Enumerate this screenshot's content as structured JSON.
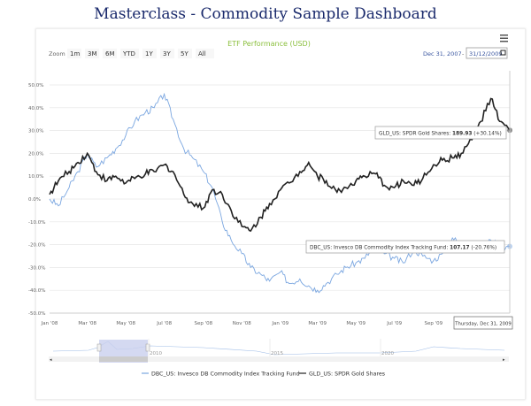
{
  "page_title": "Masterclass - Commodity Sample Dashboard",
  "chart_data": {
    "type": "line",
    "title": "ETF Performance (USD)",
    "title_color": "#8bbf3d",
    "zoom_label": "Zoom",
    "range_buttons": [
      "1m",
      "3M",
      "6M",
      "YTD",
      "1Y",
      "3Y",
      "5Y",
      "All"
    ],
    "range_from": "Dec 31, 2007",
    "range_to": "31/12/2009",
    "menu_icon": "hamburger-icon",
    "ylim": [
      -50,
      50
    ],
    "yticks": [
      "50.0%",
      "40.0%",
      "30.0%",
      "20.0%",
      "10.0%",
      "0.0%",
      "-10.0%",
      "-20.0%",
      "-30.0%",
      "-40.0%",
      "-50.0%"
    ],
    "xticks": [
      "Jan '08",
      "Mar '08",
      "May '08",
      "Jul '08",
      "Sep '08",
      "Nov '08",
      "Jan '09",
      "Mar '09",
      "May '09",
      "Jul '09",
      "Sep '09"
    ],
    "xlim": [
      "2008-01-01",
      "2009-12-31"
    ],
    "grid": true,
    "series": [
      {
        "name": "DBC_US: Invesco DB Commodity Index Tracking Fund",
        "color": "#7aa6e0",
        "x": [
          "2008-01-01",
          "2008-01-15",
          "2008-02-01",
          "2008-02-15",
          "2008-03-01",
          "2008-03-15",
          "2008-04-01",
          "2008-04-15",
          "2008-05-01",
          "2008-05-15",
          "2008-06-01",
          "2008-06-15",
          "2008-07-01",
          "2008-07-15",
          "2008-08-01",
          "2008-08-15",
          "2008-09-01",
          "2008-09-15",
          "2008-10-01",
          "2008-10-15",
          "2008-11-01",
          "2008-11-15",
          "2008-12-01",
          "2008-12-15",
          "2009-01-01",
          "2009-01-15",
          "2009-02-01",
          "2009-02-15",
          "2009-03-01",
          "2009-03-15",
          "2009-04-01",
          "2009-04-15",
          "2009-05-01",
          "2009-05-15",
          "2009-06-01",
          "2009-06-15",
          "2009-07-01",
          "2009-07-15",
          "2009-08-01",
          "2009-08-15",
          "2009-09-01",
          "2009-09-15",
          "2009-10-01",
          "2009-10-15",
          "2009-11-01",
          "2009-11-15",
          "2009-12-01",
          "2009-12-15",
          "2009-12-31"
        ],
        "values": [
          0,
          -3,
          5,
          12,
          20,
          14,
          18,
          22,
          28,
          34,
          38,
          40,
          46,
          35,
          22,
          18,
          12,
          5,
          -10,
          -18,
          -24,
          -30,
          -33,
          -36,
          -32,
          -37,
          -35,
          -38,
          -40,
          -37,
          -33,
          -30,
          -28,
          -26,
          -20,
          -24,
          -26,
          -28,
          -22,
          -25,
          -27,
          -24,
          -17,
          -20,
          -19,
          -22,
          -18,
          -21,
          -20.76
        ]
      },
      {
        "name": "GLD_US: SPDR Gold Shares",
        "color": "#222222",
        "x": [
          "2008-01-01",
          "2008-01-15",
          "2008-02-01",
          "2008-02-15",
          "2008-03-01",
          "2008-03-15",
          "2008-04-01",
          "2008-04-15",
          "2008-05-01",
          "2008-05-15",
          "2008-06-01",
          "2008-06-15",
          "2008-07-01",
          "2008-07-15",
          "2008-08-01",
          "2008-08-15",
          "2008-09-01",
          "2008-09-15",
          "2008-10-01",
          "2008-10-15",
          "2008-11-01",
          "2008-11-15",
          "2008-12-01",
          "2008-12-15",
          "2009-01-01",
          "2009-01-15",
          "2009-02-01",
          "2009-02-15",
          "2009-03-01",
          "2009-03-15",
          "2009-04-01",
          "2009-04-15",
          "2009-05-01",
          "2009-05-15",
          "2009-06-01",
          "2009-06-15",
          "2009-07-01",
          "2009-07-15",
          "2009-08-01",
          "2009-08-15",
          "2009-09-01",
          "2009-09-15",
          "2009-10-01",
          "2009-10-15",
          "2009-11-01",
          "2009-11-15",
          "2009-12-01",
          "2009-12-15",
          "2009-12-31"
        ],
        "values": [
          2,
          8,
          12,
          16,
          20,
          12,
          8,
          10,
          7,
          9,
          11,
          12,
          15,
          12,
          2,
          -2,
          -4,
          4,
          2,
          -5,
          -12,
          -14,
          -8,
          -2,
          4,
          7,
          12,
          16,
          10,
          8,
          3,
          5,
          8,
          10,
          11,
          6,
          5,
          8,
          6,
          9,
          15,
          17,
          18,
          20,
          26,
          34,
          44,
          34,
          30.14
        ]
      }
    ],
    "tooltips": [
      {
        "series": "GLD_US: SPDR Gold Shares",
        "value": "189.93",
        "change": "(+30.14%)"
      },
      {
        "series": "DBC_US: Invesco DB Commodity Index Tracking Fund",
        "value": "107.17",
        "change": "(-20.76%)"
      }
    ],
    "crosshair_label": "Thursday, Dec 31, 2009",
    "navigator": {
      "xticks": [
        "2010",
        "2015",
        "2020"
      ]
    },
    "legend_position": "bottom"
  }
}
